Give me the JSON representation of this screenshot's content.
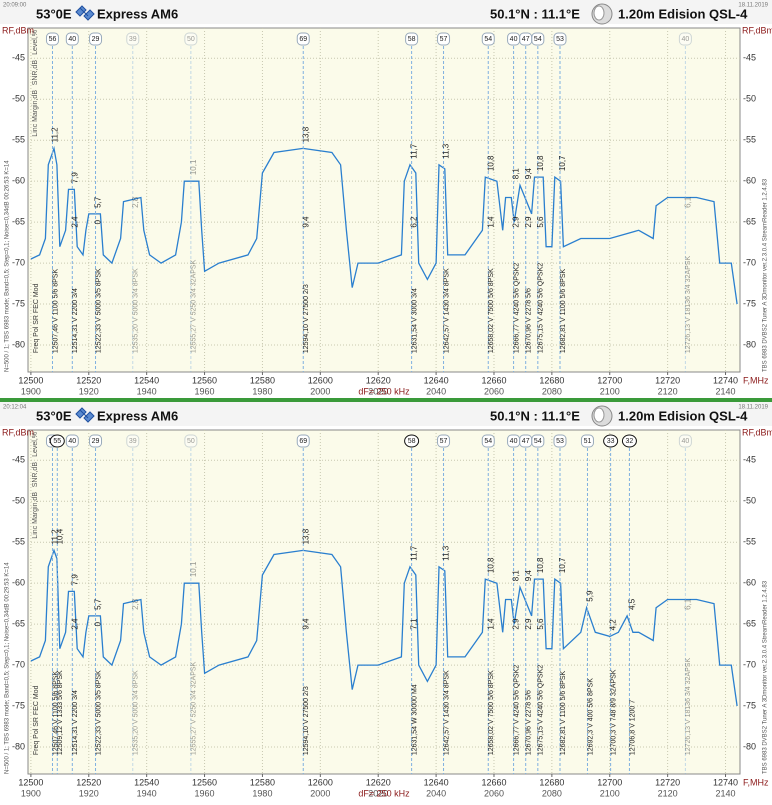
{
  "chart_data": [
    {
      "type": "line",
      "time": "20:09:00",
      "date": "18.11.2019",
      "header": {
        "orbit": "53°0E",
        "satellite": "Express AM6",
        "location": "50.1°N : 11.1°E",
        "dish": "1.20m Edision QSL-4"
      },
      "ylabel": "RF,dBm",
      "xlabel": "F,MHz",
      "df": "dF= 250 kHz",
      "side_labels": [
        "Level,%",
        "SNR,dB",
        "Linc Margin,dB"
      ],
      "columns": "Freq Pol SR FEC Mod",
      "info_left": "N=500 / 1; TBS 6983 mode; Band=0,5; Step=0,1; Noise=0,34dB 00:26:53 K=14",
      "info_right": "TBS 6983 DVBS2 Tuner A   3Dmonitor ver.2.3.0.4   StreamReader 1.2.4.83",
      "xlim": [
        12499,
        12745
      ],
      "ylim": [
        -83.3,
        -41.3
      ],
      "xticks": [
        12500,
        12520,
        12540,
        12560,
        12580,
        12600,
        12620,
        12640,
        12660,
        12680,
        12700,
        12720,
        12740
      ],
      "if_ticks": [
        1900,
        1920,
        1940,
        1960,
        1980,
        2000,
        2020,
        2040,
        2060,
        2080,
        2100,
        2120,
        2140
      ],
      "yticks": [
        -45,
        -50,
        -55,
        -60,
        -65,
        -70,
        -75,
        -80
      ],
      "grid": true,
      "series": [
        {
          "color": "#2a7fcf",
          "x": [
            12500,
            12503,
            12505,
            12506,
            12508,
            12509,
            12510,
            12512,
            12513,
            12515,
            12516,
            12518,
            12519,
            12520,
            12524,
            12525,
            12528,
            12531,
            12532,
            12538,
            12539,
            12541,
            12545,
            12550,
            12552,
            12553,
            12558,
            12559,
            12560,
            12565,
            12575,
            12578,
            12580,
            12584,
            12594,
            12604,
            12607,
            12609,
            12611,
            12613,
            12620,
            12628,
            12629,
            12631,
            12633,
            12634,
            12637,
            12640,
            12641,
            12643,
            12644,
            12650,
            12656,
            12657,
            12661,
            12663,
            12664,
            12666,
            12667,
            12669,
            12673,
            12674,
            12677,
            12678,
            12680,
            12681,
            12683,
            12684,
            12690,
            12700,
            12710,
            12715,
            12716,
            12720,
            12730,
            12736,
            12738,
            12742,
            12744
          ],
          "values": [
            -69.5,
            -69,
            -67,
            -58,
            -56,
            -58,
            -68,
            -66,
            -61,
            -61,
            -68,
            -69,
            -66,
            -64,
            -64,
            -69,
            -70,
            -67,
            -62.5,
            -62,
            -66,
            -69,
            -70,
            -69,
            -65,
            -60,
            -60,
            -66,
            -71,
            -70,
            -69,
            -67,
            -59,
            -56.5,
            -56,
            -56.5,
            -58,
            -66,
            -73,
            -70,
            -70,
            -69,
            -60,
            -58,
            -59,
            -70,
            -72,
            -70,
            -58,
            -58.5,
            -69,
            -69,
            -66,
            -59.5,
            -60,
            -66,
            -62,
            -62,
            -65,
            -60.5,
            -64,
            -59.5,
            -59.5,
            -68,
            -68,
            -59.5,
            -60,
            -68,
            -67,
            -67,
            -66,
            -67,
            -63,
            -62,
            -62,
            -62.5,
            -70,
            -70,
            -75
          ]
        }
      ],
      "carriers": [
        {
          "id": "56",
          "freq": 12507.46,
          "text": "12507,46 V 1100 5/6 8PSK",
          "upper": "11,2"
        },
        {
          "id": "40",
          "freq": 12514.31,
          "text": "12514,31 V 2200 3/4",
          "upper": "7,9",
          "lower": "2,4"
        },
        {
          "id": "29",
          "freq": 12522.33,
          "text": "12522,33 V 5000 3/5 8PSK",
          "upper": "5,7",
          "lower": "0"
        },
        {
          "id": "39",
          "freq": 12535.2,
          "text": "12535,20 V 5000 3/4 8PSK",
          "upper": "2,8",
          "faded": true
        },
        {
          "id": "50",
          "freq": 12555.27,
          "text": "12555,27 V 5250 3/4 32APSK",
          "upper": "10,1",
          "faded": true
        },
        {
          "id": "69",
          "freq": 12594.1,
          "text": "12594,10 V 27500 2/3",
          "upper": "13,8",
          "lower": "9,4"
        },
        {
          "id": "58",
          "freq": 12631.54,
          "text": "12631,54 V 3000 3/4",
          "upper": "11,7",
          "lower": "6,2"
        },
        {
          "id": "57",
          "freq": 12642.57,
          "text": "12642,57 V 1430 3/4 8PSK",
          "upper": "11,3"
        },
        {
          "id": "54",
          "freq": 12658.02,
          "text": "12658,02 V 7500 5/6 8PSK",
          "upper": "10,8",
          "lower": "1,4"
        },
        {
          "id": "40",
          "freq": 12666.77,
          "text": "12666,77 V 4240 5/6 QPSK2",
          "upper": "8,1",
          "lower": "2,9"
        },
        {
          "id": "47",
          "freq": 12670.96,
          "text": "12670,96 V 2278 5/6",
          "upper": "9,4",
          "lower": "2,9"
        },
        {
          "id": "54",
          "freq": 12675.15,
          "text": "12675,15 V 4240 5/6 QPSK2",
          "upper": "10,8",
          "lower": "5,6"
        },
        {
          "id": "53",
          "freq": 12682.81,
          "text": "12682,81 V 1100 5/6 8PSK",
          "upper": "10,7"
        },
        {
          "id": "40",
          "freq": 12726.13,
          "text": "12726,13 V 18136 3/4 32APSK",
          "upper": "6,1",
          "faded": true
        }
      ]
    },
    {
      "type": "line",
      "time": "20:12:04",
      "date": "18.11.2019",
      "header": {
        "orbit": "53°0E",
        "satellite": "Express AM6",
        "location": "50.1°N : 11.1°E",
        "dish": "1.20m Edision QSL-4"
      },
      "ylabel": "RF,dBm",
      "xlabel": "F,MHz",
      "df": "dF= 250 kHz",
      "side_labels": [
        "Level,%",
        "SNR,dB",
        "Linc Margin,dB"
      ],
      "columns": "Freq Pol SR FEC Mod",
      "info_left": "N=500 / 1; TBS 6983 mode; Band=0,5; Step=0,1; Noise=0,34dB 00:29:53 K=14",
      "info_right": "TBS 6983 DVBS2 Tuner A   3Dmonitor ver.2.3.0.4   StreamReader 1.2.4.83",
      "xlim": [
        12499,
        12745
      ],
      "ylim": [
        -83.3,
        -41.3
      ],
      "xticks": [
        12500,
        12520,
        12540,
        12560,
        12580,
        12600,
        12620,
        12640,
        12660,
        12680,
        12700,
        12720,
        12740
      ],
      "if_ticks": [
        1900,
        1920,
        1940,
        1960,
        1980,
        2000,
        2020,
        2040,
        2060,
        2080,
        2100,
        2120,
        2140
      ],
      "yticks": [
        -45,
        -50,
        -55,
        -60,
        -65,
        -70,
        -75,
        -80
      ],
      "grid": true,
      "series": [
        {
          "color": "#2a7fcf",
          "x": [
            12500,
            12503,
            12505,
            12506,
            12508,
            12509,
            12510,
            12512,
            12513,
            12515,
            12516,
            12518,
            12519,
            12520,
            12524,
            12525,
            12528,
            12531,
            12532,
            12538,
            12539,
            12541,
            12545,
            12550,
            12552,
            12553,
            12558,
            12559,
            12560,
            12565,
            12575,
            12578,
            12580,
            12584,
            12594,
            12604,
            12607,
            12609,
            12611,
            12613,
            12620,
            12628,
            12629,
            12631,
            12633,
            12634,
            12637,
            12640,
            12641,
            12643,
            12644,
            12650,
            12656,
            12657,
            12661,
            12663,
            12664,
            12666,
            12667,
            12669,
            12673,
            12674,
            12677,
            12678,
            12680,
            12681,
            12683,
            12684,
            12690,
            12692,
            12695,
            12700,
            12703,
            12706,
            12708,
            12710,
            12715,
            12716,
            12720,
            12730,
            12736,
            12738,
            12742,
            12744
          ],
          "values": [
            -69.5,
            -69,
            -67,
            -58,
            -56,
            -57,
            -68,
            -66,
            -61,
            -61,
            -68,
            -69,
            -66,
            -64,
            -64,
            -69,
            -70,
            -67,
            -62.5,
            -62,
            -66,
            -69,
            -70,
            -69,
            -65,
            -60,
            -60,
            -66,
            -71,
            -70,
            -69,
            -67,
            -59,
            -56.5,
            -56,
            -56.5,
            -58,
            -66,
            -73,
            -70,
            -70,
            -69,
            -60,
            -58,
            -59,
            -70,
            -72,
            -70,
            -58,
            -58.5,
            -69,
            -69,
            -66,
            -59.5,
            -60,
            -66,
            -62,
            -62,
            -65,
            -60.5,
            -64,
            -59.5,
            -59.5,
            -68,
            -68,
            -59.5,
            -60,
            -68,
            -66,
            -63,
            -66,
            -66.5,
            -66,
            -64,
            -66,
            -66,
            -67,
            -63,
            -62,
            -62,
            -62.5,
            -70,
            -70,
            -75
          ]
        }
      ],
      "carriers": [
        {
          "id": "56",
          "freq": 12507.46,
          "text": "12507,46 V 1100 5/6 8PSK",
          "upper": "11,2"
        },
        {
          "id": "55",
          "freq": 12509.12,
          "text": "12509,12 V 1333 5/6 8PSK",
          "upper": "10,4",
          "circled": true
        },
        {
          "id": "40",
          "freq": 12514.31,
          "text": "12514,31 V 2200 3/4",
          "upper": "7,9",
          "lower": "2,4"
        },
        {
          "id": "29",
          "freq": 12522.33,
          "text": "12522,33 V 5000 3/5 8PSK",
          "upper": "5,7",
          "lower": "0"
        },
        {
          "id": "39",
          "freq": 12535.2,
          "text": "12535,20 V 5000 3/4 8PSK",
          "upper": "2,8",
          "faded": true
        },
        {
          "id": "50",
          "freq": 12555.27,
          "text": "12555,27 V 5250 3/4 32APSK",
          "upper": "10,1",
          "faded": true
        },
        {
          "id": "69",
          "freq": 12594.1,
          "text": "12594,10 V 27500 2/3",
          "upper": "13,8",
          "lower": "9,4"
        },
        {
          "id": "58",
          "freq": 12631.54,
          "text": "12631,54 W 30000 M4",
          "upper": "11,7",
          "lower": "7,1",
          "circled": true
        },
        {
          "id": "57",
          "freq": 12642.57,
          "text": "12642,57 V 1430 3/4 8PSK",
          "upper": "11,3"
        },
        {
          "id": "54",
          "freq": 12658.02,
          "text": "12658,02 V 7500 5/6 8PSK",
          "upper": "10,8",
          "lower": "1,4"
        },
        {
          "id": "40",
          "freq": 12666.77,
          "text": "12666,77 V 4240 5/6 QPSK2",
          "upper": "8,1",
          "lower": "2,9"
        },
        {
          "id": "47",
          "freq": 12670.96,
          "text": "12670,96 V 2278 5/6",
          "upper": "9,4",
          "lower": "2,9"
        },
        {
          "id": "54",
          "freq": 12675.15,
          "text": "12675,15 V 4240 5/6 QPSK2",
          "upper": "10,8",
          "lower": "5,6"
        },
        {
          "id": "53",
          "freq": 12682.81,
          "text": "12682,81 V 1100 5/6 8PSK",
          "upper": "10,7"
        },
        {
          "id": "51",
          "freq": 12692.3,
          "text": "12692,3 V 400 5/6 8PSK",
          "upper": "5,9"
        },
        {
          "id": "33",
          "freq": 12700.3,
          "text": "12700,3 V 748 8/9 32APSK",
          "upper": "4,2",
          "circled": true
        },
        {
          "id": "32",
          "freq": 12706.8,
          "text": "12706,8 V 1200 7",
          "upper": "4,5",
          "circled": true
        },
        {
          "id": "40",
          "freq": 12726.13,
          "text": "12726,13 V 18136 3/4 32APSK",
          "upper": "6,1",
          "faded": true
        }
      ]
    }
  ]
}
